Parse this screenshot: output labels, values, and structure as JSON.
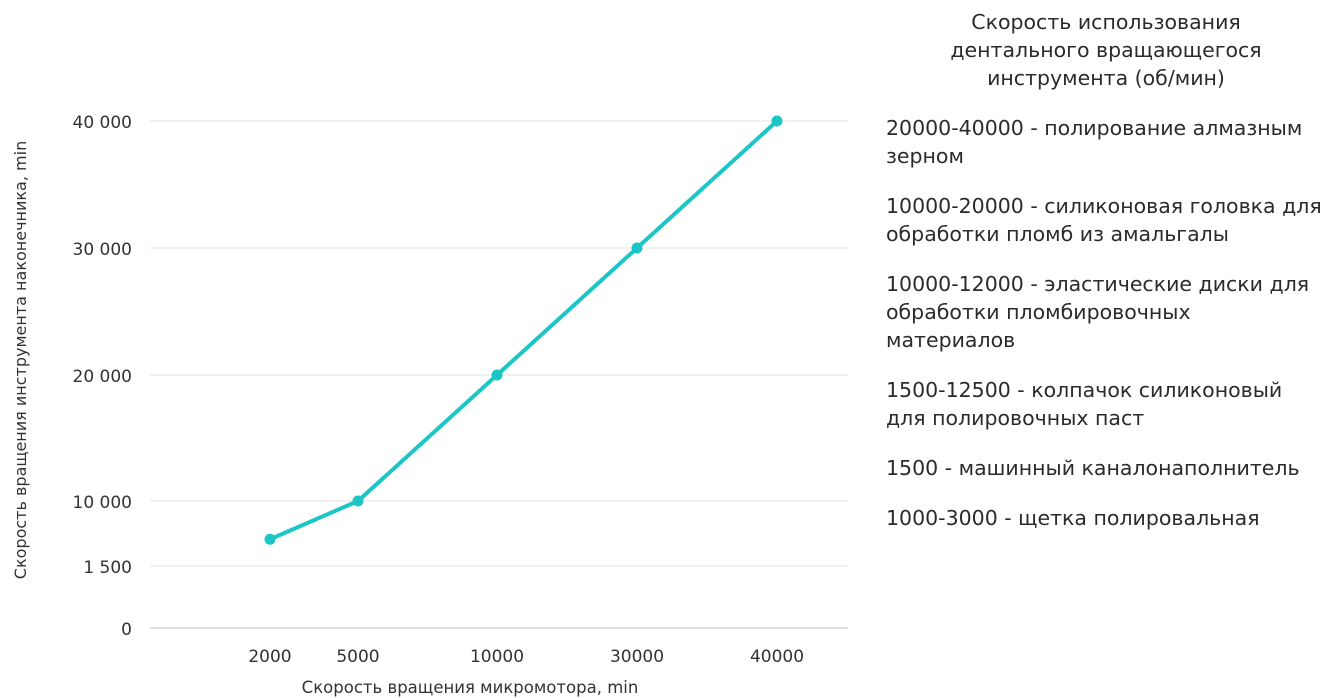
{
  "chart_data": {
    "type": "line",
    "xlabel": "Скорость вращения микромотора, min",
    "ylabel": "Скорость вращения инструмента наконечника, min",
    "categories": [
      "2000",
      "5000",
      "10000",
      "30000",
      "40000"
    ],
    "y_ticks": [
      {
        "value": 0,
        "label": "0"
      },
      {
        "value": 1500,
        "label": "1 500"
      },
      {
        "value": 10000,
        "label": "10 000"
      },
      {
        "value": 20000,
        "label": "20 000"
      },
      {
        "value": 30000,
        "label": "30 000"
      },
      {
        "value": 40000,
        "label": "40 000"
      }
    ],
    "ylim": [
      0,
      40000
    ],
    "grid": true,
    "series": [
      {
        "color": "#1cc6c6",
        "points": [
          {
            "x": "2000",
            "y": 5000
          },
          {
            "x": "5000",
            "y": 10000
          },
          {
            "x": "10000",
            "y": 20000
          },
          {
            "x": "30000",
            "y": 30000
          },
          {
            "x": "40000",
            "y": 40000
          }
        ]
      }
    ]
  },
  "legend": {
    "title": "Скорость использования\nдентального вращающегося\nинструмента (об/мин)",
    "items": [
      "20000-40000 - полирование алмазным зерном",
      "10000-20000 - силиконовая головка для обработки пломб из амальгалы",
      "10000-12000 - эластические диски для обработки пломбировочных материалов",
      "1500-12500 - колпачок силиконовый для полировочных паст",
      "1500 - машинный каналонаполнитель",
      "1000-3000 - щетка полировальная"
    ]
  },
  "colors": {
    "line": "#1cc6c6",
    "grid": "#e6e6e6",
    "axis": "#cccccc"
  }
}
